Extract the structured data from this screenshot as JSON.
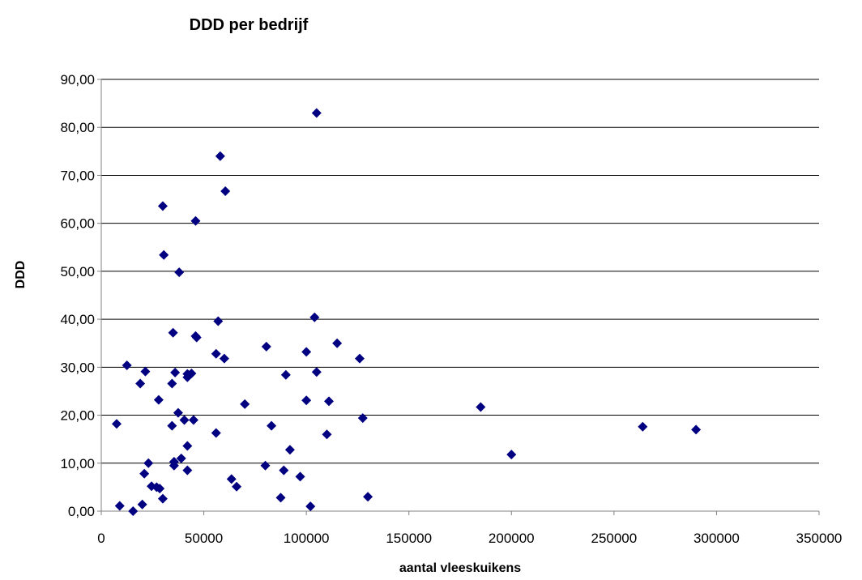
{
  "chart_data": {
    "type": "scatter",
    "title": "DDD per bedrijf",
    "xlabel": "aantal vleeskuikens",
    "ylabel": "DDD",
    "xlim": [
      0,
      350000
    ],
    "ylim": [
      0,
      90
    ],
    "x_ticks": [
      0,
      50000,
      100000,
      150000,
      200000,
      250000,
      300000,
      350000
    ],
    "x_tick_labels": [
      "0",
      "50000",
      "100000",
      "150000",
      "200000",
      "250000",
      "300000",
      "350000"
    ],
    "y_ticks": [
      0,
      10,
      20,
      30,
      40,
      50,
      60,
      70,
      80,
      90
    ],
    "y_tick_labels": [
      "0,00",
      "10,00",
      "20,00",
      "30,00",
      "40,00",
      "50,00",
      "60,00",
      "70,00",
      "80,00",
      "90,00"
    ],
    "grid": "horizontal",
    "legend": "none",
    "marker_color": "#000080",
    "points": [
      [
        105000,
        83.0
      ],
      [
        58000,
        74.0
      ],
      [
        60500,
        66.7
      ],
      [
        30000,
        63.6
      ],
      [
        46000,
        60.5
      ],
      [
        30500,
        53.4
      ],
      [
        38000,
        49.8
      ],
      [
        104000,
        40.4
      ],
      [
        57000,
        39.6
      ],
      [
        35000,
        37.2
      ],
      [
        46000,
        36.5
      ],
      [
        46500,
        36.2
      ],
      [
        115000,
        35.0
      ],
      [
        80500,
        34.3
      ],
      [
        100000,
        33.2
      ],
      [
        56000,
        32.8
      ],
      [
        60000,
        31.8
      ],
      [
        126000,
        31.8
      ],
      [
        12500,
        30.4
      ],
      [
        21500,
        29.1
      ],
      [
        36000,
        28.9
      ],
      [
        42000,
        28.6
      ],
      [
        44000,
        28.7
      ],
      [
        90000,
        28.4
      ],
      [
        105000,
        29.0
      ],
      [
        42000,
        27.9
      ],
      [
        19000,
        26.6
      ],
      [
        34500,
        26.6
      ],
      [
        28000,
        23.2
      ],
      [
        70000,
        22.3
      ],
      [
        100000,
        23.1
      ],
      [
        111000,
        22.9
      ],
      [
        185000,
        21.7
      ],
      [
        37500,
        20.5
      ],
      [
        40500,
        19.0
      ],
      [
        45000,
        19.0
      ],
      [
        127500,
        19.4
      ],
      [
        7500,
        18.2
      ],
      [
        34500,
        17.8
      ],
      [
        83000,
        17.8
      ],
      [
        264000,
        17.6
      ],
      [
        290000,
        17.0
      ],
      [
        56000,
        16.3
      ],
      [
        110000,
        16.0
      ],
      [
        42000,
        13.6
      ],
      [
        92000,
        12.8
      ],
      [
        200000,
        11.8
      ],
      [
        39000,
        11.0
      ],
      [
        35500,
        10.3
      ],
      [
        23000,
        10.0
      ],
      [
        35500,
        9.5
      ],
      [
        80000,
        9.5
      ],
      [
        42000,
        8.5
      ],
      [
        89000,
        8.5
      ],
      [
        21000,
        7.8
      ],
      [
        97000,
        7.2
      ],
      [
        63500,
        6.7
      ],
      [
        24500,
        5.2
      ],
      [
        27000,
        5.0
      ],
      [
        28500,
        4.7
      ],
      [
        66000,
        5.1
      ],
      [
        30000,
        2.6
      ],
      [
        87500,
        2.8
      ],
      [
        130000,
        3.0
      ],
      [
        9000,
        1.1
      ],
      [
        20000,
        1.4
      ],
      [
        102000,
        1.0
      ],
      [
        15500,
        0.0
      ]
    ]
  }
}
